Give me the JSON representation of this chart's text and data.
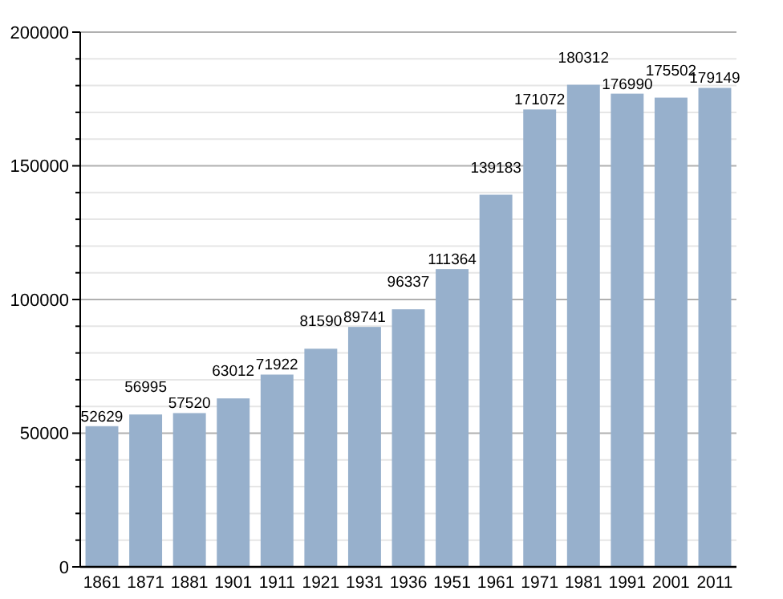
{
  "chart_data": {
    "type": "bar",
    "categories": [
      "1861",
      "1871",
      "1881",
      "1901",
      "1911",
      "1921",
      "1931",
      "1936",
      "1951",
      "1961",
      "1971",
      "1981",
      "1991",
      "2001",
      "2011"
    ],
    "values": [
      52629,
      56995,
      57520,
      63012,
      71922,
      81590,
      89741,
      96337,
      111364,
      139183,
      171072,
      180312,
      176990,
      175502,
      179149
    ],
    "color": "#97b0cc",
    "ylim": [
      0,
      200000
    ],
    "yticks": [
      0,
      {
        "value": 10000,
        "label": null
      },
      {
        "value": 20000,
        "label": null
      },
      {
        "value": 30000,
        "label": null
      },
      {
        "value": 40000,
        "label": null
      },
      50000,
      {
        "value": 60000,
        "label": null
      },
      {
        "value": 70000,
        "label": null
      },
      {
        "value": 80000,
        "label": null
      },
      {
        "value": 90000,
        "label": null
      },
      100000,
      {
        "value": 110000,
        "label": null
      },
      {
        "value": 120000,
        "label": null
      },
      {
        "value": 130000,
        "label": null
      },
      {
        "value": 140000,
        "label": null
      },
      150000,
      {
        "value": 160000,
        "label": null
      },
      {
        "value": 170000,
        "label": null
      },
      {
        "value": 180000,
        "label": null
      },
      {
        "value": 190000,
        "label": null
      },
      200000
    ],
    "grid": true,
    "data_labels": true
  }
}
